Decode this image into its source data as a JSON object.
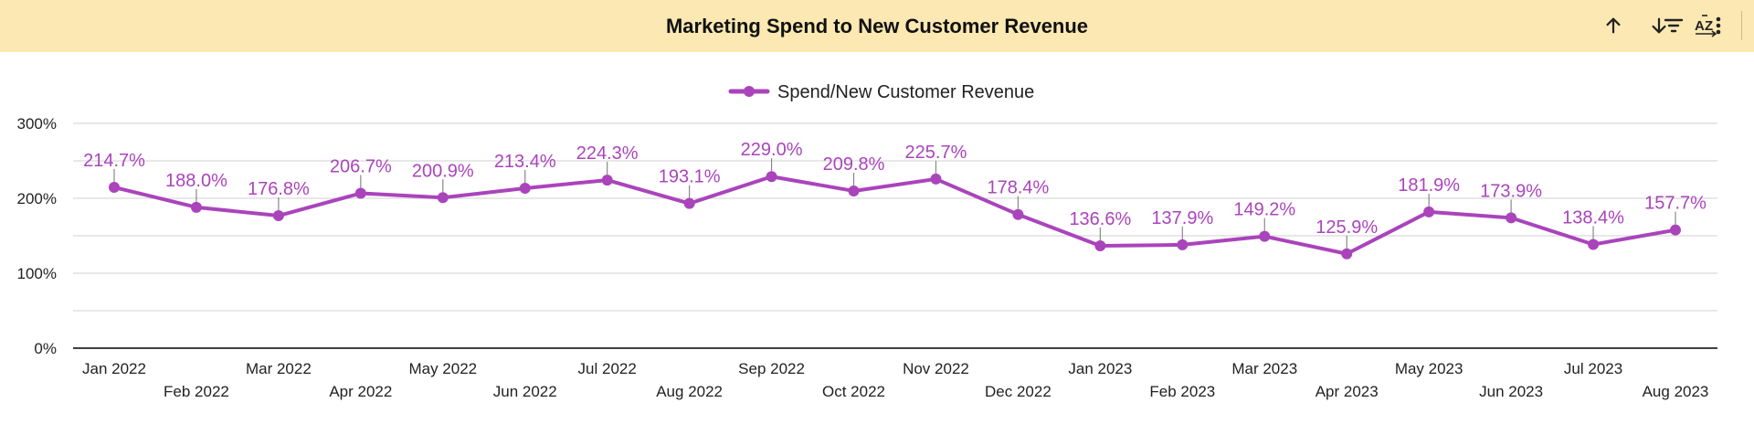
{
  "header": {
    "title": "Marketing Spend to New Customer Revenue"
  },
  "toolbar": {
    "icons": [
      "sort-ascending-icon",
      "sort-descending-icon",
      "sort-az-icon",
      "filter-icon",
      "more-vert-icon"
    ]
  },
  "colors": {
    "header_bg": "#fce8b2",
    "series": "#aa44bb",
    "label": "#aa44bb",
    "grid": "#d9d9d9",
    "axis": "#000000"
  },
  "chart_data": {
    "type": "line",
    "title": "Marketing Spend to New Customer Revenue",
    "xlabel": "",
    "ylabel": "",
    "ylim": [
      0,
      300
    ],
    "yticks": [
      0,
      100,
      200,
      300
    ],
    "ytick_labels": [
      "0%",
      "100%",
      "200%",
      "300%"
    ],
    "legend_position": "top-center",
    "grid": true,
    "categories": [
      "Jan 2022",
      "Feb 2022",
      "Mar 2022",
      "Apr 2022",
      "May 2022",
      "Jun 2022",
      "Jul 2022",
      "Aug 2022",
      "Sep 2022",
      "Oct 2022",
      "Nov 2022",
      "Dec 2022",
      "Jan 2023",
      "Feb 2023",
      "Mar 2023",
      "Apr 2023",
      "May 2023",
      "Jun 2023",
      "Jul 2023",
      "Aug 2023"
    ],
    "series": [
      {
        "name": "Spend/New Customer Revenue",
        "values": [
          214.7,
          188.0,
          176.8,
          206.7,
          200.9,
          213.4,
          224.3,
          193.1,
          229.0,
          209.8,
          225.7,
          178.4,
          136.6,
          137.9,
          149.2,
          125.9,
          181.9,
          173.9,
          138.4,
          157.7
        ],
        "labels": [
          "214.7%",
          "188.0%",
          "176.8%",
          "206.7%",
          "200.9%",
          "213.4%",
          "224.3%",
          "193.1%",
          "229.0%",
          "209.8%",
          "225.7%",
          "178.4%",
          "136.6%",
          "137.9%",
          "149.2%",
          "125.9%",
          "181.9%",
          "173.9%",
          "138.4%",
          "157.7%"
        ]
      }
    ]
  }
}
